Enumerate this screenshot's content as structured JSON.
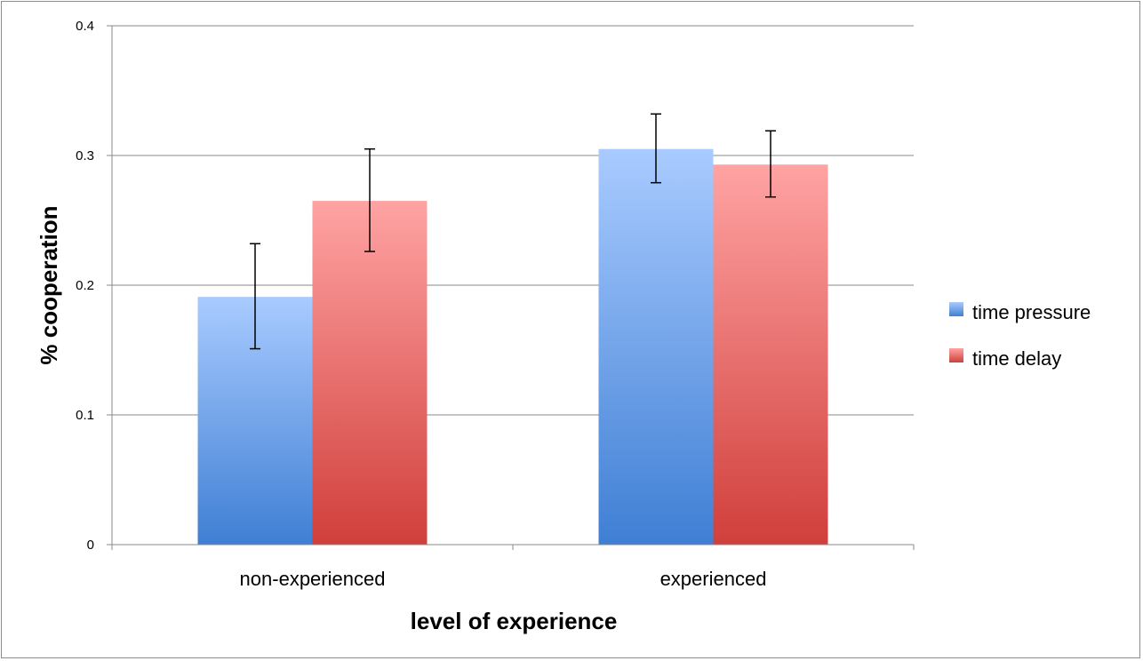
{
  "chart_data": {
    "type": "bar",
    "title": "",
    "xlabel": "level of experience",
    "ylabel": "% cooperation",
    "categories": [
      "non-experienced",
      "experienced"
    ],
    "ylim": [
      0,
      0.4
    ],
    "yticks": [
      0,
      0.1,
      0.2,
      0.3,
      0.4
    ],
    "ytick_labels": [
      "0",
      "0.1",
      "0.2",
      "0.3",
      "0.4"
    ],
    "grid": true,
    "legend_position": "right",
    "series": [
      {
        "name": "time pressure",
        "values": [
          0.191,
          0.305
        ],
        "error_low": [
          0.151,
          0.279
        ],
        "error_high": [
          0.232,
          0.332
        ],
        "color_top": "#a9cbff",
        "color_bottom": "#3f7fd4"
      },
      {
        "name": "time delay",
        "values": [
          0.265,
          0.293
        ],
        "error_low": [
          0.226,
          0.268
        ],
        "error_high": [
          0.305,
          0.319
        ],
        "color_top": "#ffa3a3",
        "color_bottom": "#d03f3b"
      }
    ]
  }
}
